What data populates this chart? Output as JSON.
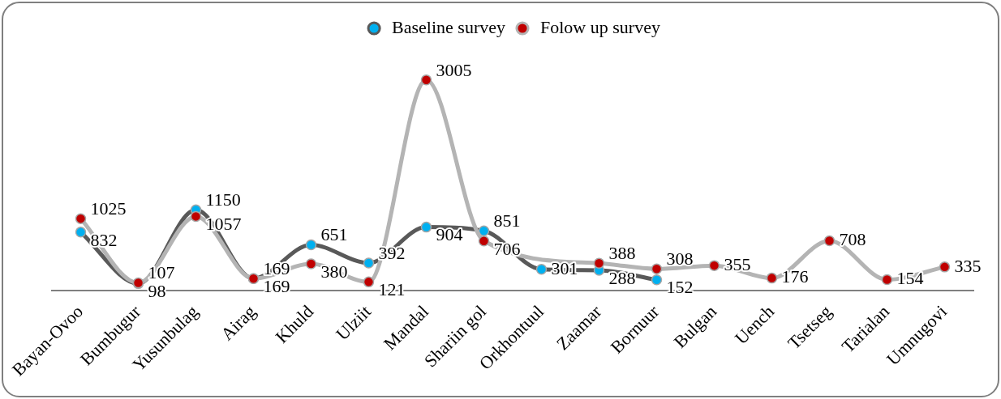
{
  "chart_data": {
    "type": "line",
    "categories": [
      "Bayan-Ovoo",
      "Bumbugur",
      "Yusunbulag",
      "Airag",
      "Khuld",
      "Ulziit",
      "Mandal",
      "Shariin gol",
      "Orkhontuul",
      "Zaamar",
      "Bornuur",
      "Bulgan",
      "Uench",
      "Tsetseg",
      "Tarialan",
      "Umnugovi"
    ],
    "series": [
      {
        "name": "Baseline survey",
        "color": "#595959",
        "values": [
          832,
          98,
          1150,
          169,
          651,
          392,
          904,
          851,
          301,
          288,
          152,
          null,
          null,
          null,
          null,
          null
        ]
      },
      {
        "name": "Folow up survey",
        "color": "#b4b4b4",
        "values": [
          1025,
          107,
          1057,
          169,
          380,
          121,
          3005,
          706,
          null,
          388,
          308,
          355,
          176,
          708,
          154,
          335
        ]
      }
    ],
    "data_labels": true,
    "legend": "top",
    "marker": "circle",
    "grid": false,
    "tick_labels": "x"
  }
}
